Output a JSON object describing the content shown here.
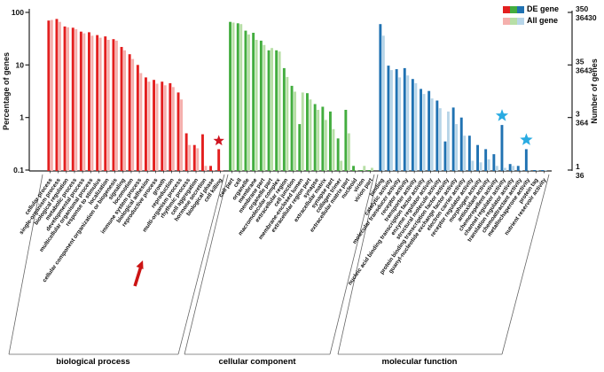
{
  "chart_data": {
    "type": "bar",
    "title": "",
    "y_axis": {
      "label": "Percentage of genes",
      "scale": "log",
      "ticks": [
        100,
        10,
        1,
        0.1
      ],
      "tick_labels": [
        "100",
        "10",
        "1",
        "0.1"
      ]
    },
    "y2_axis": {
      "label": "Number of genes",
      "tick_pairs": [
        [
          "350",
          "36430"
        ],
        [
          "35",
          "3643"
        ],
        [
          "3",
          "364"
        ],
        [
          "1",
          "36"
        ]
      ]
    },
    "legend": [
      {
        "label": "DE gene"
      },
      {
        "label": "All gene"
      }
    ],
    "annotation_colors": {
      "red_star": "#cf1420",
      "blue_star": "#29abe2",
      "arrow": "#cc1414"
    },
    "sections": [
      {
        "name": "biological process",
        "color_de": "#e31f1f",
        "color_all": "#f5b0ad",
        "categories": [
          {
            "label": "cellular process",
            "de": 70,
            "all": 72
          },
          {
            "label": "single-organism process",
            "de": 75,
            "all": 66
          },
          {
            "label": "biological regulation",
            "de": 54,
            "all": 52
          },
          {
            "label": "metabolic process",
            "de": 51,
            "all": 48
          },
          {
            "label": "developmental process",
            "de": 43,
            "all": 40
          },
          {
            "label": "multicellular organismal process",
            "de": 42,
            "all": 36
          },
          {
            "label": "response to stimulus",
            "de": 37,
            "all": 33
          },
          {
            "label": "localization",
            "de": 35,
            "all": 30
          },
          {
            "label": "cellular component organization or biogenesis",
            "de": 31,
            "all": 29
          },
          {
            "label": "signaling",
            "de": 22,
            "all": 19
          },
          {
            "label": "locomotion",
            "de": 16,
            "all": 13
          },
          {
            "label": "immune system process",
            "de": 10,
            "all": 7,
            "arrow": true
          },
          {
            "label": "biological adhesion",
            "de": 5.8,
            "all": 4.8
          },
          {
            "label": "reproductive process",
            "de": 5.2,
            "all": 4.4
          },
          {
            "label": "growth",
            "de": 4.8,
            "all": 4.1
          },
          {
            "label": "reproduction",
            "de": 4.5,
            "all": 3.8
          },
          {
            "label": "multi-organism process",
            "de": 3.0,
            "all": 2.2
          },
          {
            "label": "rhythmic process",
            "de": 0.5,
            "all": 0.3
          },
          {
            "label": "cell aggregation",
            "de": 0.3,
            "all": 0.26
          },
          {
            "label": "hormone secretion",
            "de": 0.48,
            "all": 0.12
          },
          {
            "label": "biological phase",
            "de": 0.12,
            "all": 0.1
          },
          {
            "label": "cell killing",
            "de": 0.25,
            "all": 0.1,
            "star": "red"
          }
        ]
      },
      {
        "name": "cellular component",
        "color_de": "#43ad3f",
        "color_all": "#b7dfa6",
        "categories": [
          {
            "label": "cell part",
            "de": 66,
            "all": 64
          },
          {
            "label": "cell",
            "de": 62,
            "all": 60
          },
          {
            "label": "organelle",
            "de": 45,
            "all": 38
          },
          {
            "label": "membrane",
            "de": 41,
            "all": 30
          },
          {
            "label": "membrane part",
            "de": 29,
            "all": 24
          },
          {
            "label": "organelle part",
            "de": 19,
            "all": 21
          },
          {
            "label": "macromolecular complex",
            "de": 19,
            "all": 18
          },
          {
            "label": "extracellular region",
            "de": 8.7,
            "all": 5.9
          },
          {
            "label": "cell junction",
            "de": 4.0,
            "all": 3.1
          },
          {
            "label": "membrane-enclosed lumen",
            "de": 0.75,
            "all": 3.0
          },
          {
            "label": "extracellular region part",
            "de": 2.9,
            "all": 2.2
          },
          {
            "label": "synapse",
            "de": 1.8,
            "all": 1.4
          },
          {
            "label": "extracellular matrix",
            "de": 1.6,
            "all": 0.9
          },
          {
            "label": "synapse part",
            "de": 1.3,
            "all": 0.6
          },
          {
            "label": "collagen trimer",
            "de": 0.4,
            "all": 0.15
          },
          {
            "label": "extracellular matrix part",
            "de": 1.4,
            "all": 0.5
          },
          {
            "label": "nucleoid",
            "de": 0.12,
            "all": 0.1
          },
          {
            "label": "virion",
            "de": 0.1,
            "all": 0.12
          },
          {
            "label": "virion part",
            "de": 0.1,
            "all": 0.11
          }
        ]
      },
      {
        "name": "molecular function",
        "color_de": "#2072b2",
        "color_all": "#b7d5e8",
        "categories": [
          {
            "label": "binding",
            "de": 60,
            "all": 36
          },
          {
            "label": "catalytic activity",
            "de": 9.7,
            "all": 8.0
          },
          {
            "label": "molecular transducer activity",
            "de": 8.3,
            "all": 5.8
          },
          {
            "label": "receptor activity",
            "de": 8.7,
            "all": 6.3
          },
          {
            "label": "transporter activity",
            "de": 5.4,
            "all": 4.5
          },
          {
            "label": "nucleic acid binding transcription factor activity",
            "de": 3.5,
            "all": 2.8
          },
          {
            "label": "enzyme regulator activity",
            "de": 3.2,
            "all": 2.3
          },
          {
            "label": "structural molecule activity",
            "de": 2.1,
            "all": 1.5
          },
          {
            "label": "protein binding transcription factor activity",
            "de": 0.35,
            "all": 1.3
          },
          {
            "label": "guanyl-nucleotide exchange factor activity",
            "de": 1.55,
            "all": 0.75
          },
          {
            "label": "electron carrier activity",
            "de": 1.0,
            "all": 0.45
          },
          {
            "label": "receptor regulator activity",
            "de": 0.45,
            "all": 0.15
          },
          {
            "label": "morphogen activity",
            "de": 0.3,
            "all": 0.14
          },
          {
            "label": "antioxidant activity",
            "de": 0.25,
            "all": 0.16
          },
          {
            "label": "chemorepellent activity",
            "de": 0.2,
            "all": 0.12
          },
          {
            "label": "channel regulator activity",
            "de": 0.72,
            "all": 0.11,
            "star": "blue"
          },
          {
            "label": "translation regulator activity",
            "de": 0.13,
            "all": 0.12
          },
          {
            "label": "chemoattractant activity",
            "de": 0.12,
            "all": 0.1
          },
          {
            "label": "metallochaperone activity",
            "de": 0.25,
            "all": 0.1,
            "star": "blue"
          },
          {
            "label": "protein tag",
            "de": 0.1,
            "all": 0.1
          },
          {
            "label": "nutrient reservoir activity",
            "de": 0.1,
            "all": 0.1
          }
        ]
      }
    ]
  }
}
